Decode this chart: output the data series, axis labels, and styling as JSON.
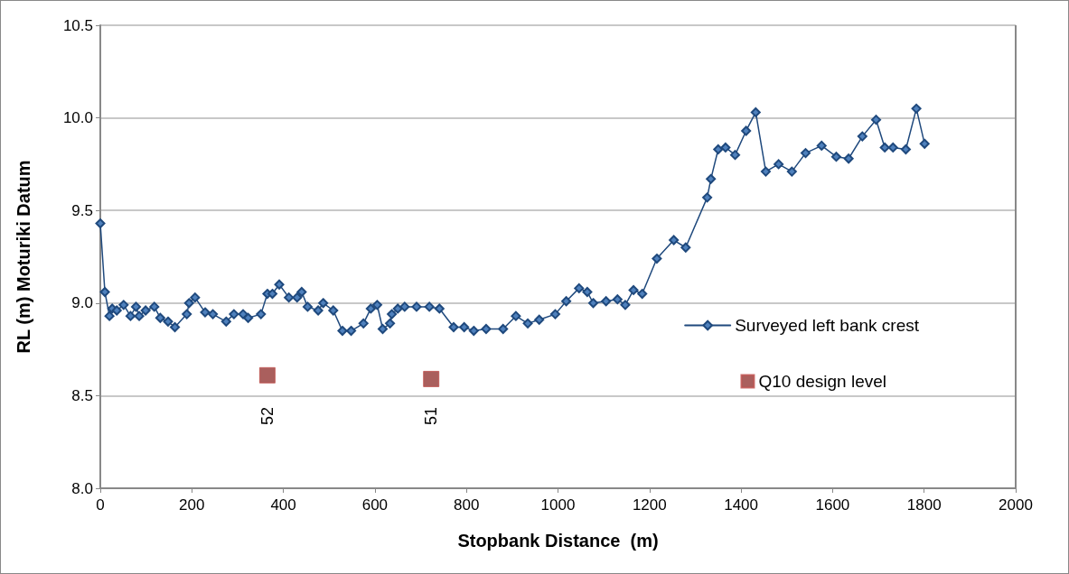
{
  "chart_data": {
    "type": "line",
    "xlabel": "Stopbank Distance  (m)",
    "ylabel": "RL (m) Moturiki Datum",
    "xlim": [
      0,
      2000
    ],
    "xticks": [
      0,
      200,
      400,
      600,
      800,
      1000,
      1200,
      1400,
      1600,
      1800,
      2000
    ],
    "ylim": [
      8.0,
      10.5
    ],
    "yticks": [
      {
        "value": 8.0,
        "label": "8.0"
      },
      {
        "value": 8.5,
        "label": "8.5"
      },
      {
        "value": 9.0,
        "label": "9.0"
      },
      {
        "value": 9.5,
        "label": "9.5"
      },
      {
        "value": 10.0,
        "label": "10.0"
      },
      {
        "value": 10.5,
        "label": "10.5"
      }
    ],
    "grid": "y",
    "legend": "right",
    "series": [
      {
        "name": "Surveyed left bank crest",
        "type": "line",
        "color": "#1f497d",
        "marker": "diamond",
        "line_style": "solid",
        "x": [
          0,
          10,
          20,
          26,
          36,
          51,
          66,
          78,
          85,
          99,
          118,
          131,
          148,
          163,
          189,
          194,
          207,
          229,
          246,
          275,
          292,
          312,
          323,
          351,
          365,
          376,
          391,
          412,
          430,
          440,
          453,
          476,
          487,
          509,
          529,
          548,
          575,
          591,
          605,
          617,
          633,
          637,
          650,
          665,
          691,
          719,
          741,
          772,
          795,
          816,
          843,
          880,
          908,
          934,
          959,
          994,
          1018,
          1046,
          1064,
          1077,
          1105,
          1130,
          1147,
          1165,
          1184,
          1216,
          1253,
          1279,
          1326,
          1334,
          1350,
          1366,
          1387,
          1411,
          1432,
          1454,
          1482,
          1511,
          1541,
          1576,
          1608,
          1635,
          1665,
          1695,
          1714,
          1732,
          1760,
          1783,
          1801
        ],
        "values": [
          9.43,
          9.06,
          8.93,
          8.97,
          8.96,
          8.99,
          8.93,
          8.98,
          8.93,
          8.96,
          8.98,
          8.92,
          8.9,
          8.87,
          8.94,
          9.0,
          9.03,
          8.95,
          8.94,
          8.9,
          8.94,
          8.94,
          8.92,
          8.94,
          9.05,
          9.05,
          9.1,
          9.03,
          9.03,
          9.06,
          8.98,
          8.96,
          9.0,
          8.96,
          8.85,
          8.85,
          8.89,
          8.97,
          8.99,
          8.86,
          8.89,
          8.94,
          8.97,
          8.98,
          8.98,
          8.98,
          8.97,
          8.87,
          8.87,
          8.85,
          8.86,
          8.86,
          8.93,
          8.89,
          8.91,
          8.94,
          9.01,
          9.08,
          9.06,
          9.0,
          9.01,
          9.02,
          8.99,
          9.07,
          9.05,
          9.24,
          9.34,
          9.3,
          9.57,
          9.67,
          9.83,
          9.84,
          9.8,
          9.93,
          10.03,
          9.71,
          9.75,
          9.71,
          9.81,
          9.85,
          9.79,
          9.78,
          9.9,
          9.99,
          9.84,
          9.84,
          9.83,
          10.05,
          9.86
        ]
      },
      {
        "name": "Q10 design level",
        "type": "scatter",
        "color": "#953735",
        "marker": "square",
        "x": [
          365,
          723
        ],
        "values": [
          8.61,
          8.59
        ]
      }
    ],
    "annotations": [
      "52",
      "51"
    ]
  }
}
